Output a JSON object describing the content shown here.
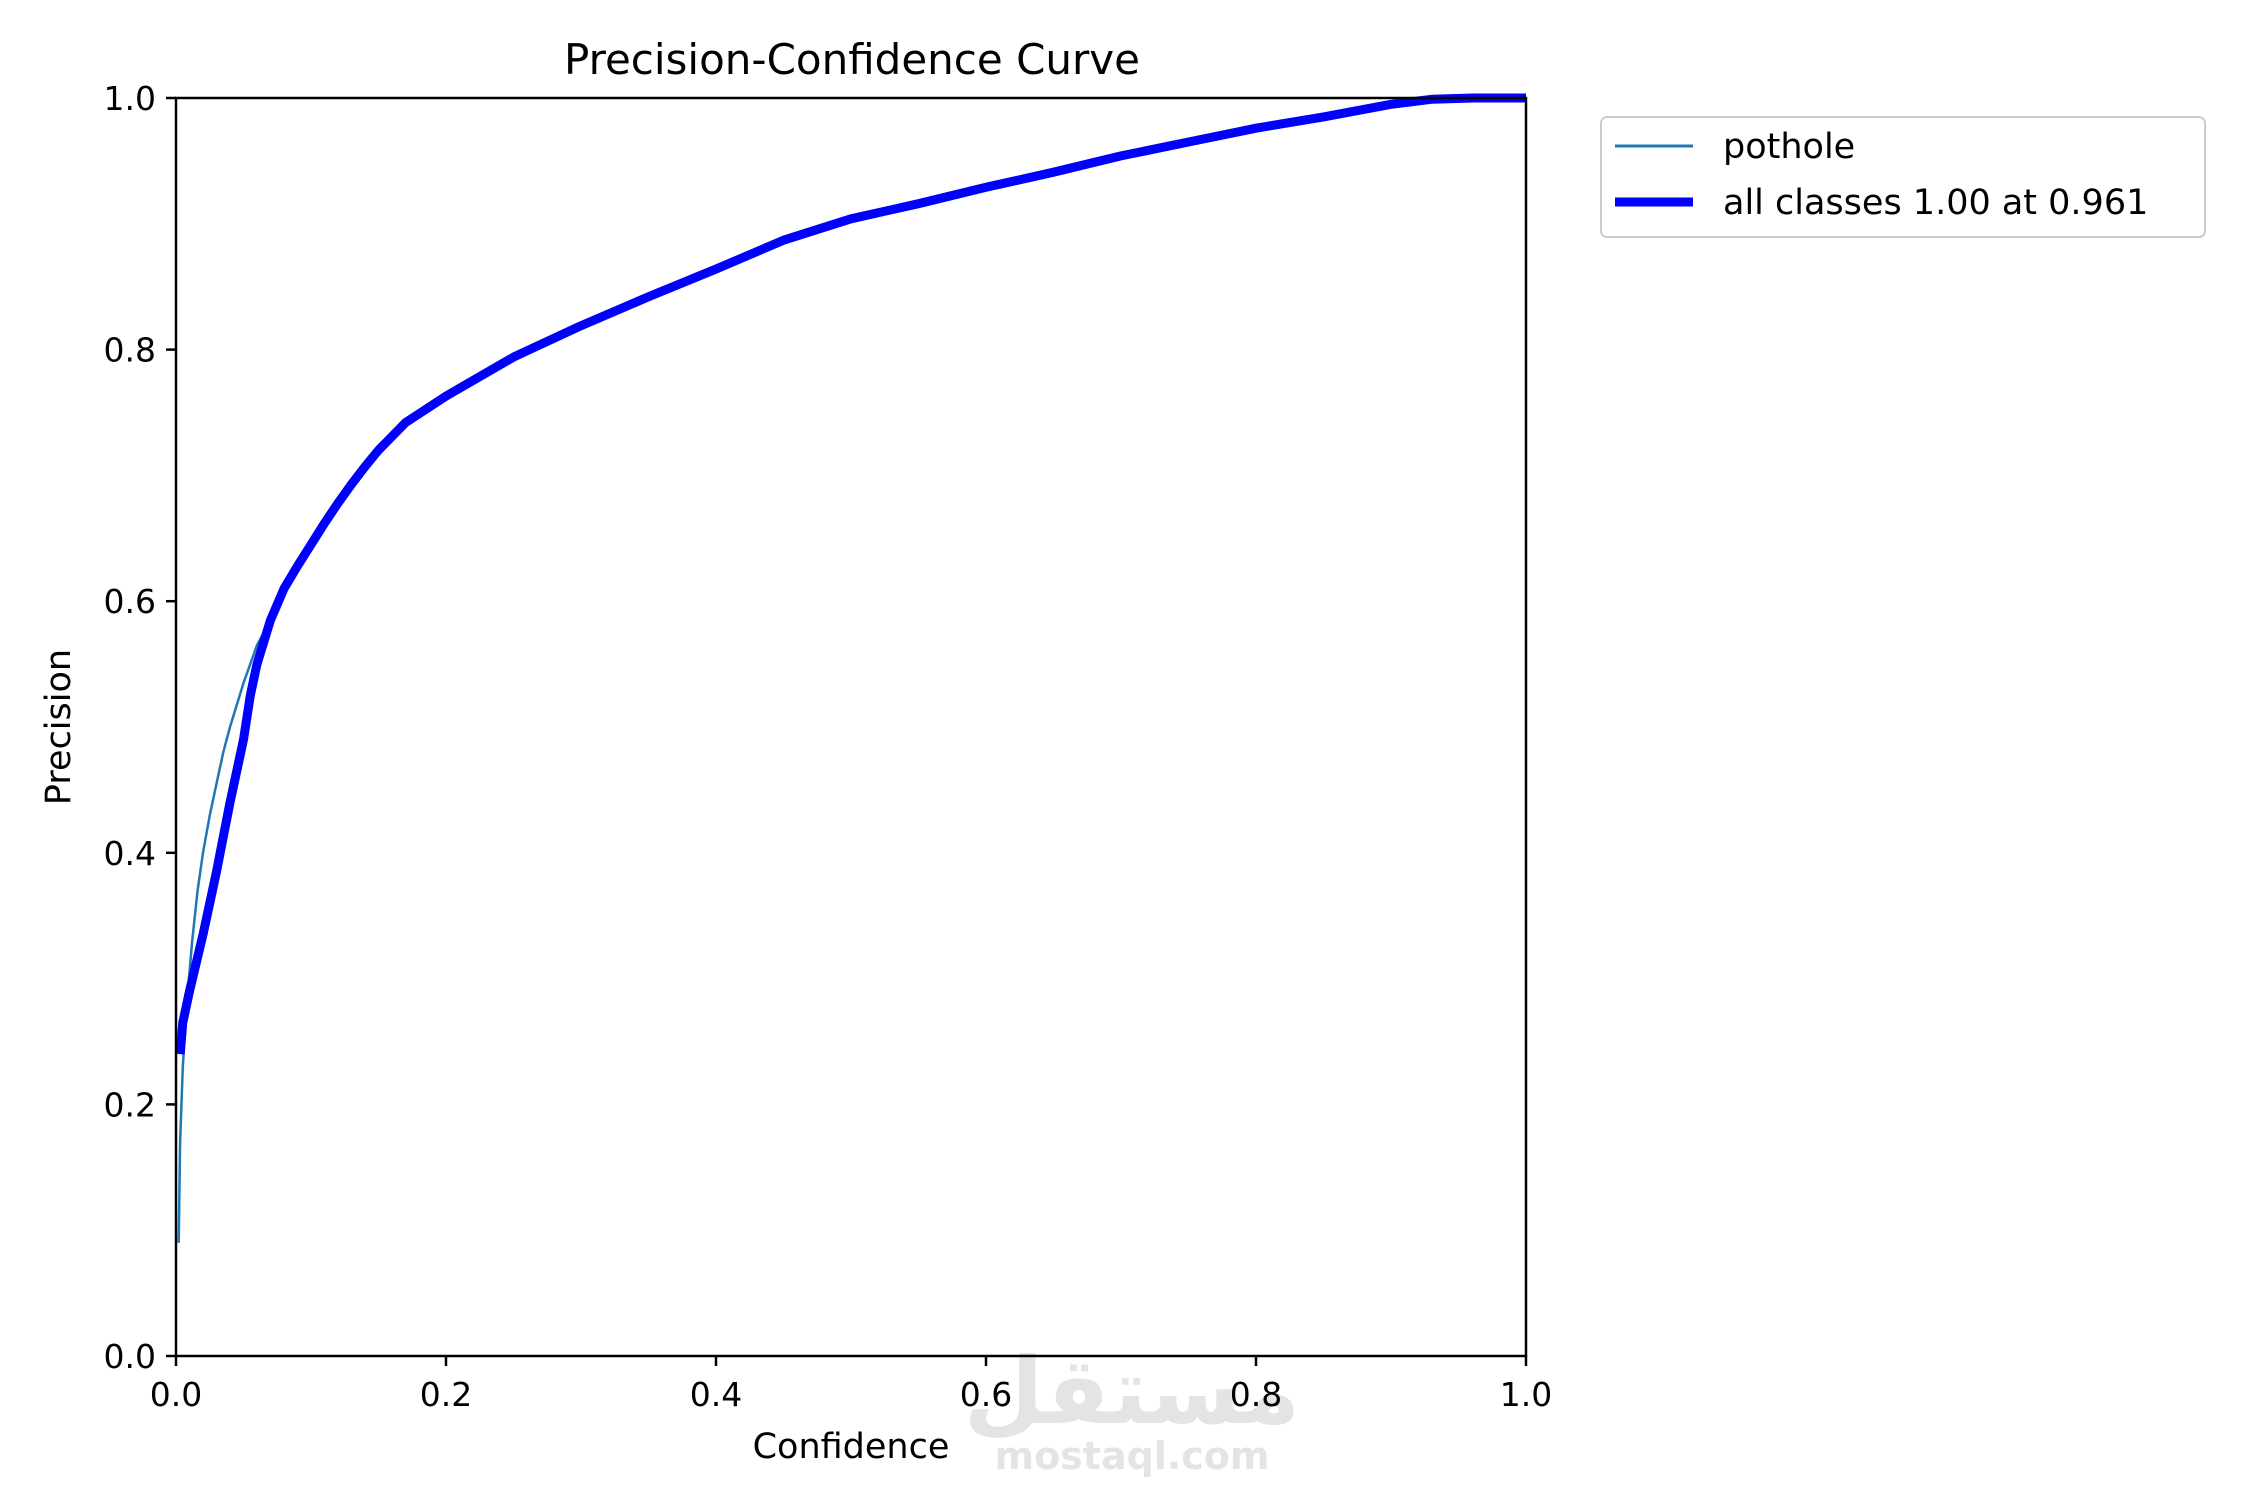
{
  "chart_data": {
    "type": "line",
    "title": "Precision-Confidence Curve",
    "xlabel": "Confidence",
    "ylabel": "Precision",
    "xlim": [
      0,
      1
    ],
    "ylim": [
      0,
      1
    ],
    "x_ticks": [
      0.0,
      0.2,
      0.4,
      0.6,
      0.8,
      1.0
    ],
    "y_ticks": [
      0.0,
      0.2,
      0.4,
      0.6,
      0.8,
      1.0
    ],
    "x_tick_labels": [
      "0.0",
      "0.2",
      "0.4",
      "0.6",
      "0.8",
      "1.0"
    ],
    "y_tick_labels": [
      "0.0",
      "0.2",
      "0.4",
      "0.6",
      "0.8",
      "1.0"
    ],
    "grid": false,
    "legend_position": "outside-top-right",
    "series": [
      {
        "name": "pothole",
        "color": "#1f77b4",
        "points": [
          [
            0.002,
            0.09
          ],
          [
            0.003,
            0.17
          ],
          [
            0.005,
            0.23
          ],
          [
            0.008,
            0.28
          ],
          [
            0.012,
            0.33
          ],
          [
            0.016,
            0.37
          ],
          [
            0.02,
            0.4
          ],
          [
            0.025,
            0.43
          ],
          [
            0.03,
            0.455
          ],
          [
            0.035,
            0.48
          ],
          [
            0.04,
            0.5
          ],
          [
            0.05,
            0.535
          ],
          [
            0.06,
            0.565
          ],
          [
            0.07,
            0.585
          ],
          [
            0.08,
            0.61
          ],
          [
            0.09,
            0.63
          ],
          [
            0.1,
            0.645
          ],
          [
            0.11,
            0.665
          ],
          [
            0.12,
            0.68
          ],
          [
            0.13,
            0.695
          ],
          [
            0.14,
            0.71
          ],
          [
            0.15,
            0.722
          ],
          [
            0.17,
            0.743
          ],
          [
            0.2,
            0.765
          ],
          [
            0.25,
            0.795
          ],
          [
            0.3,
            0.82
          ],
          [
            0.35,
            0.843
          ],
          [
            0.4,
            0.865
          ],
          [
            0.45,
            0.888
          ],
          [
            0.5,
            0.905
          ],
          [
            0.55,
            0.917
          ],
          [
            0.6,
            0.93
          ],
          [
            0.65,
            0.942
          ],
          [
            0.7,
            0.955
          ],
          [
            0.75,
            0.966
          ],
          [
            0.8,
            0.977
          ],
          [
            0.85,
            0.986
          ],
          [
            0.9,
            0.996
          ],
          [
            0.93,
            0.999
          ],
          [
            0.961,
            1.0
          ],
          [
            1.0,
            1.0
          ]
        ]
      },
      {
        "name": "all classes 1.00 at 0.961",
        "color": "#0000ff",
        "points": [
          [
            0.003,
            0.24
          ],
          [
            0.005,
            0.265
          ],
          [
            0.01,
            0.29
          ],
          [
            0.02,
            0.335
          ],
          [
            0.03,
            0.385
          ],
          [
            0.04,
            0.44
          ],
          [
            0.05,
            0.49
          ],
          [
            0.055,
            0.525
          ],
          [
            0.06,
            0.55
          ],
          [
            0.07,
            0.585
          ],
          [
            0.08,
            0.61
          ],
          [
            0.09,
            0.628
          ],
          [
            0.1,
            0.645
          ],
          [
            0.11,
            0.662
          ],
          [
            0.12,
            0.678
          ],
          [
            0.13,
            0.693
          ],
          [
            0.14,
            0.707
          ],
          [
            0.15,
            0.72
          ],
          [
            0.17,
            0.742
          ],
          [
            0.2,
            0.763
          ],
          [
            0.25,
            0.794
          ],
          [
            0.3,
            0.819
          ],
          [
            0.35,
            0.842
          ],
          [
            0.4,
            0.864
          ],
          [
            0.45,
            0.887
          ],
          [
            0.5,
            0.904
          ],
          [
            0.55,
            0.916
          ],
          [
            0.6,
            0.929
          ],
          [
            0.65,
            0.941
          ],
          [
            0.7,
            0.954
          ],
          [
            0.75,
            0.965
          ],
          [
            0.8,
            0.976
          ],
          [
            0.85,
            0.985
          ],
          [
            0.9,
            0.995
          ],
          [
            0.93,
            0.999
          ],
          [
            0.961,
            1.0
          ],
          [
            1.0,
            1.0
          ]
        ]
      }
    ]
  },
  "watermark": {
    "arabic": "مستقل",
    "latin": "mostaql.com"
  }
}
